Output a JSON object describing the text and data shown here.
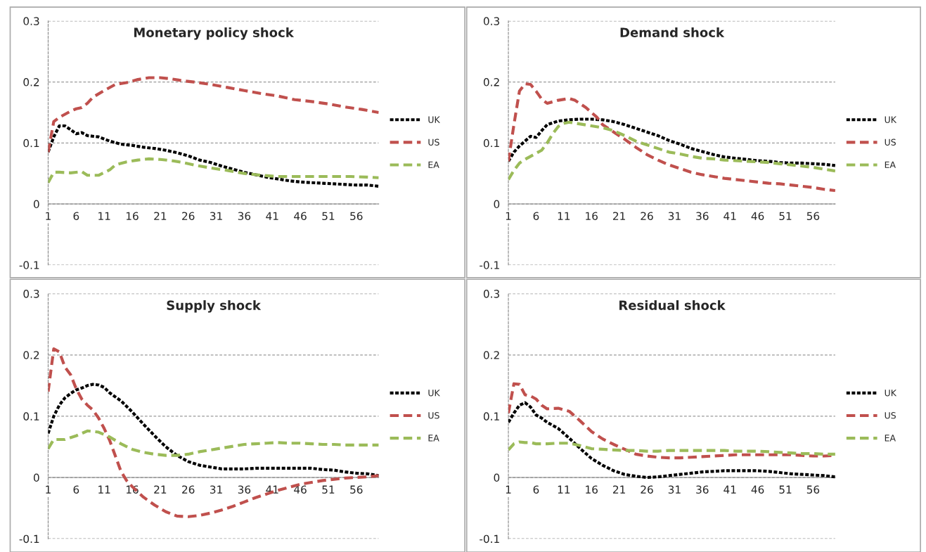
{
  "chart_data": [
    {
      "type": "line",
      "title": "Monetary policy shock",
      "xlim": [
        1,
        60
      ],
      "xticks": [
        1,
        6,
        11,
        16,
        21,
        26,
        31,
        36,
        41,
        46,
        51,
        56
      ],
      "ylim": [
        -0.1,
        0.3
      ],
      "yticks": [
        -0.1,
        0,
        0.1,
        0.2,
        0.3
      ],
      "grid": "y",
      "legend": "right",
      "series": [
        {
          "name": "UK",
          "color": "#000000",
          "line_style": "dotted",
          "x": [
            1,
            2,
            3,
            4,
            5,
            6,
            7,
            8,
            10,
            12,
            14,
            16,
            18,
            20,
            22,
            24,
            26,
            28,
            30,
            32,
            34,
            36,
            38,
            40,
            42,
            44,
            46,
            48,
            50,
            52,
            54,
            56,
            58,
            60
          ],
          "values": [
            0.085,
            0.11,
            0.128,
            0.128,
            0.122,
            0.115,
            0.117,
            0.112,
            0.11,
            0.103,
            0.098,
            0.096,
            0.093,
            0.091,
            0.088,
            0.084,
            0.079,
            0.072,
            0.068,
            0.062,
            0.057,
            0.052,
            0.048,
            0.044,
            0.041,
            0.038,
            0.036,
            0.035,
            0.034,
            0.033,
            0.032,
            0.031,
            0.031,
            0.029
          ]
        },
        {
          "name": "US",
          "color": "#c0504d",
          "line_style": "dashed",
          "x": [
            1,
            2,
            3,
            5,
            6,
            7,
            8,
            9,
            11,
            13,
            15,
            17,
            19,
            21,
            23,
            25,
            27,
            30,
            33,
            36,
            39,
            42,
            45,
            48,
            51,
            54,
            57,
            60
          ],
          "values": [
            0.085,
            0.135,
            0.142,
            0.152,
            0.156,
            0.158,
            0.165,
            0.175,
            0.186,
            0.196,
            0.199,
            0.204,
            0.207,
            0.207,
            0.205,
            0.202,
            0.2,
            0.196,
            0.191,
            0.186,
            0.181,
            0.177,
            0.171,
            0.168,
            0.164,
            0.159,
            0.155,
            0.15
          ]
        },
        {
          "name": "EA",
          "color": "#9bbb59",
          "line_style": "dashed",
          "x": [
            1,
            2,
            3,
            5,
            6,
            7,
            8,
            10,
            12,
            13,
            15,
            17,
            19,
            21,
            23,
            25,
            27,
            30,
            33,
            36,
            39,
            42,
            45,
            50,
            55,
            58,
            60
          ],
          "values": [
            0.035,
            0.052,
            0.052,
            0.051,
            0.052,
            0.053,
            0.047,
            0.047,
            0.056,
            0.064,
            0.069,
            0.072,
            0.074,
            0.073,
            0.071,
            0.068,
            0.064,
            0.059,
            0.055,
            0.05,
            0.047,
            0.045,
            0.045,
            0.045,
            0.045,
            0.044,
            0.043
          ]
        }
      ]
    },
    {
      "type": "line",
      "title": "Demand shock",
      "xlim": [
        1,
        60
      ],
      "xticks": [
        1,
        6,
        11,
        16,
        21,
        26,
        31,
        36,
        41,
        46,
        51,
        56
      ],
      "ylim": [
        -0.1,
        0.3
      ],
      "yticks": [
        -0.1,
        0,
        0.1,
        0.2,
        0.3
      ],
      "grid": "y",
      "legend": "right",
      "series": [
        {
          "name": "UK",
          "color": "#000000",
          "line_style": "dotted",
          "x": [
            1,
            2,
            3,
            4,
            5,
            6,
            7,
            8,
            10,
            12,
            14,
            16,
            18,
            20,
            22,
            24,
            26,
            28,
            30,
            32,
            34,
            36,
            38,
            40,
            42,
            44,
            46,
            48,
            50,
            52,
            54,
            56,
            58,
            60
          ],
          "values": [
            0.07,
            0.085,
            0.095,
            0.103,
            0.111,
            0.109,
            0.12,
            0.13,
            0.136,
            0.138,
            0.139,
            0.139,
            0.138,
            0.135,
            0.13,
            0.124,
            0.118,
            0.112,
            0.104,
            0.098,
            0.091,
            0.086,
            0.081,
            0.077,
            0.075,
            0.073,
            0.071,
            0.07,
            0.068,
            0.067,
            0.067,
            0.066,
            0.065,
            0.063
          ]
        },
        {
          "name": "US",
          "color": "#c0504d",
          "line_style": "dashed",
          "x": [
            1,
            2,
            3,
            4,
            5,
            6,
            7,
            8,
            10,
            12,
            13,
            15,
            17,
            18,
            20,
            22,
            24,
            26,
            28,
            30,
            32,
            34,
            36,
            38,
            40,
            42,
            44,
            46,
            48,
            50,
            52,
            54,
            56,
            58,
            60
          ],
          "values": [
            0.07,
            0.13,
            0.185,
            0.197,
            0.196,
            0.185,
            0.172,
            0.165,
            0.17,
            0.173,
            0.17,
            0.158,
            0.142,
            0.13,
            0.118,
            0.106,
            0.093,
            0.081,
            0.072,
            0.064,
            0.058,
            0.052,
            0.048,
            0.045,
            0.042,
            0.04,
            0.038,
            0.036,
            0.034,
            0.033,
            0.031,
            0.029,
            0.027,
            0.024,
            0.022
          ]
        },
        {
          "name": "EA",
          "color": "#9bbb59",
          "line_style": "dashed",
          "x": [
            1,
            2,
            3,
            4,
            5,
            7,
            8,
            9,
            10,
            11,
            12,
            14,
            16,
            18,
            20,
            22,
            24,
            26,
            28,
            30,
            32,
            34,
            36,
            38,
            40,
            42,
            44,
            46,
            48,
            50,
            52,
            54,
            56,
            58,
            60
          ],
          "values": [
            0.04,
            0.055,
            0.067,
            0.073,
            0.078,
            0.088,
            0.1,
            0.115,
            0.127,
            0.132,
            0.134,
            0.131,
            0.128,
            0.125,
            0.12,
            0.112,
            0.103,
            0.097,
            0.091,
            0.085,
            0.082,
            0.078,
            0.075,
            0.074,
            0.072,
            0.071,
            0.07,
            0.069,
            0.068,
            0.066,
            0.064,
            0.062,
            0.06,
            0.057,
            0.054
          ]
        }
      ]
    },
    {
      "type": "line",
      "title": "Supply shock",
      "xlim": [
        1,
        60
      ],
      "xticks": [
        1,
        6,
        11,
        16,
        21,
        26,
        31,
        36,
        41,
        46,
        51,
        56
      ],
      "ylim": [
        -0.1,
        0.3
      ],
      "yticks": [
        -0.1,
        0,
        0.1,
        0.2,
        0.3
      ],
      "grid": "y",
      "legend": "right",
      "series": [
        {
          "name": "UK",
          "color": "#000000",
          "line_style": "dotted",
          "x": [
            1,
            2,
            3,
            4,
            5,
            6,
            7,
            8,
            9,
            10,
            11,
            12,
            14,
            16,
            18,
            20,
            22,
            24,
            26,
            28,
            30,
            32,
            34,
            36,
            38,
            40,
            44,
            48,
            50,
            52,
            54,
            56,
            58,
            60
          ],
          "values": [
            0.072,
            0.1,
            0.118,
            0.13,
            0.137,
            0.143,
            0.146,
            0.15,
            0.152,
            0.151,
            0.147,
            0.138,
            0.125,
            0.107,
            0.087,
            0.068,
            0.05,
            0.036,
            0.026,
            0.02,
            0.017,
            0.014,
            0.014,
            0.014,
            0.015,
            0.015,
            0.015,
            0.015,
            0.013,
            0.012,
            0.009,
            0.007,
            0.006,
            0.003
          ]
        },
        {
          "name": "US",
          "color": "#c0504d",
          "line_style": "dashed",
          "x": [
            1,
            2,
            3,
            4,
            5,
            6,
            7,
            8,
            9,
            10,
            11,
            12,
            13,
            14,
            15,
            16,
            18,
            20,
            22,
            24,
            26,
            28,
            30,
            32,
            34,
            36,
            38,
            40,
            42,
            44,
            46,
            48,
            50,
            52,
            54,
            56,
            58,
            60
          ],
          "values": [
            0.14,
            0.21,
            0.205,
            0.18,
            0.168,
            0.145,
            0.128,
            0.118,
            0.11,
            0.097,
            0.08,
            0.06,
            0.035,
            0.01,
            -0.005,
            -0.015,
            -0.032,
            -0.045,
            -0.056,
            -0.063,
            -0.064,
            -0.062,
            -0.058,
            -0.053,
            -0.047,
            -0.04,
            -0.033,
            -0.027,
            -0.021,
            -0.016,
            -0.011,
            -0.008,
            -0.005,
            -0.003,
            -0.001,
            0.0,
            0.001,
            0.003
          ]
        },
        {
          "name": "EA",
          "color": "#9bbb59",
          "line_style": "dashed",
          "x": [
            1,
            2,
            4,
            6,
            8,
            10,
            12,
            14,
            16,
            18,
            20,
            22,
            24,
            26,
            28,
            30,
            32,
            34,
            36,
            38,
            40,
            42,
            44,
            46,
            48,
            50,
            52,
            54,
            56,
            58,
            60
          ],
          "values": [
            0.047,
            0.062,
            0.062,
            0.068,
            0.076,
            0.074,
            0.066,
            0.055,
            0.046,
            0.041,
            0.038,
            0.036,
            0.036,
            0.038,
            0.042,
            0.045,
            0.048,
            0.051,
            0.054,
            0.055,
            0.056,
            0.057,
            0.056,
            0.056,
            0.055,
            0.054,
            0.054,
            0.053,
            0.053,
            0.053,
            0.053
          ]
        }
      ]
    },
    {
      "type": "line",
      "title": "Residual shock",
      "xlim": [
        1,
        60
      ],
      "xticks": [
        1,
        6,
        11,
        16,
        21,
        26,
        31,
        36,
        41,
        46,
        51,
        56
      ],
      "ylim": [
        -0.1,
        0.3
      ],
      "yticks": [
        -0.1,
        0,
        0.1,
        0.2,
        0.3
      ],
      "grid": "y",
      "legend": "right",
      "series": [
        {
          "name": "UK",
          "color": "#000000",
          "line_style": "dotted",
          "x": [
            1,
            2,
            3,
            4,
            5,
            6,
            7,
            8,
            10,
            12,
            14,
            16,
            18,
            20,
            22,
            24,
            26,
            28,
            30,
            32,
            34,
            36,
            38,
            40,
            44,
            46,
            48,
            50,
            52,
            54,
            56,
            58,
            60
          ],
          "values": [
            0.09,
            0.105,
            0.118,
            0.122,
            0.115,
            0.102,
            0.097,
            0.09,
            0.08,
            0.064,
            0.047,
            0.031,
            0.02,
            0.011,
            0.005,
            0.002,
            0.0,
            0.001,
            0.003,
            0.005,
            0.007,
            0.009,
            0.01,
            0.011,
            0.011,
            0.011,
            0.01,
            0.008,
            0.006,
            0.005,
            0.004,
            0.003,
            0.001
          ]
        },
        {
          "name": "US",
          "color": "#c0504d",
          "line_style": "dashed",
          "x": [
            1,
            2,
            3,
            4,
            5,
            6,
            7,
            8,
            10,
            12,
            14,
            16,
            18,
            20,
            22,
            24,
            26,
            28,
            30,
            32,
            34,
            36,
            38,
            40,
            42,
            44,
            46,
            48,
            50,
            52,
            54,
            56,
            58,
            60
          ],
          "values": [
            0.105,
            0.153,
            0.152,
            0.135,
            0.133,
            0.128,
            0.118,
            0.112,
            0.113,
            0.108,
            0.092,
            0.075,
            0.063,
            0.054,
            0.046,
            0.038,
            0.035,
            0.033,
            0.032,
            0.032,
            0.033,
            0.034,
            0.035,
            0.036,
            0.037,
            0.037,
            0.037,
            0.037,
            0.037,
            0.037,
            0.036,
            0.035,
            0.035,
            0.036
          ]
        },
        {
          "name": "EA",
          "color": "#9bbb59",
          "line_style": "dashed",
          "x": [
            1,
            2,
            3,
            4,
            5,
            6,
            8,
            10,
            12,
            14,
            16,
            18,
            20,
            22,
            24,
            26,
            28,
            30,
            32,
            34,
            36,
            38,
            40,
            42,
            44,
            46,
            48,
            50,
            52,
            54,
            56,
            58,
            60
          ],
          "values": [
            0.045,
            0.055,
            0.058,
            0.057,
            0.057,
            0.055,
            0.055,
            0.056,
            0.056,
            0.052,
            0.047,
            0.046,
            0.045,
            0.044,
            0.044,
            0.043,
            0.043,
            0.044,
            0.044,
            0.044,
            0.044,
            0.044,
            0.044,
            0.043,
            0.043,
            0.043,
            0.042,
            0.041,
            0.04,
            0.039,
            0.039,
            0.038,
            0.038
          ]
        }
      ]
    }
  ]
}
